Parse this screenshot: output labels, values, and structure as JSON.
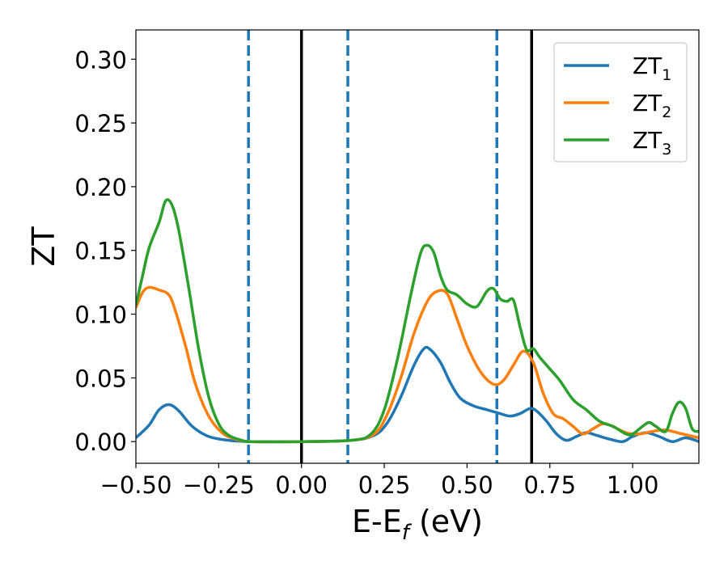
{
  "chart_data": {
    "type": "line",
    "xlabel": "E-E",
    "xlabel_sub": "f",
    "xlabel_unit": "(eV)",
    "ylabel": "ZT",
    "xlim": [
      -0.5,
      1.2
    ],
    "ylim": [
      -0.017,
      0.323
    ],
    "grid": false,
    "legend_position": "top-right",
    "x_ticks": [
      -0.5,
      -0.25,
      0.0,
      0.25,
      0.5,
      0.75,
      1.0
    ],
    "x_tick_labels": [
      "−0.50",
      "−0.25",
      "0.00",
      "0.25",
      "0.50",
      "0.75",
      "1.00"
    ],
    "y_ticks": [
      0.0,
      0.05,
      0.1,
      0.15,
      0.2,
      0.25,
      0.3
    ],
    "y_tick_labels": [
      "0.00",
      "0.05",
      "0.10",
      "0.15",
      "0.20",
      "0.25",
      "0.30"
    ],
    "vertical_lines": [
      {
        "x": -0.16,
        "style": "dashed",
        "color": "#1f77b4"
      },
      {
        "x": 0.0,
        "style": "solid",
        "color": "#000000"
      },
      {
        "x": 0.14,
        "style": "dashed",
        "color": "#1f77b4"
      },
      {
        "x": 0.59,
        "style": "dashed",
        "color": "#1f77b4"
      },
      {
        "x": 0.695,
        "style": "solid",
        "color": "#000000"
      }
    ],
    "series": [
      {
        "name": "ZT",
        "name_sub": "1",
        "color": "#1f77b4",
        "points": [
          [
            -0.5,
            0.003
          ],
          [
            -0.46,
            0.013
          ],
          [
            -0.43,
            0.025
          ],
          [
            -0.4,
            0.029
          ],
          [
            -0.37,
            0.024
          ],
          [
            -0.33,
            0.012
          ],
          [
            -0.28,
            0.004
          ],
          [
            -0.22,
            0.001
          ],
          [
            -0.15,
            0.0
          ],
          [
            0.0,
            0.0
          ],
          [
            0.15,
            0.001
          ],
          [
            0.22,
            0.005
          ],
          [
            0.26,
            0.015
          ],
          [
            0.3,
            0.035
          ],
          [
            0.34,
            0.06
          ],
          [
            0.37,
            0.073
          ],
          [
            0.39,
            0.072
          ],
          [
            0.42,
            0.062
          ],
          [
            0.45,
            0.046
          ],
          [
            0.48,
            0.034
          ],
          [
            0.52,
            0.028
          ],
          [
            0.56,
            0.025
          ],
          [
            0.6,
            0.022
          ],
          [
            0.63,
            0.02
          ],
          [
            0.66,
            0.022
          ],
          [
            0.69,
            0.026
          ],
          [
            0.71,
            0.024
          ],
          [
            0.74,
            0.016
          ],
          [
            0.77,
            0.006
          ],
          [
            0.8,
            0.001
          ],
          [
            0.83,
            0.004
          ],
          [
            0.86,
            0.007
          ],
          [
            0.89,
            0.005
          ],
          [
            0.93,
            0.002
          ],
          [
            0.97,
            0.0
          ],
          [
            1.0,
            0.004
          ],
          [
            1.04,
            0.007
          ],
          [
            1.08,
            0.004
          ],
          [
            1.12,
            0.0
          ],
          [
            1.16,
            0.003
          ],
          [
            1.2,
            0.0
          ]
        ]
      },
      {
        "name": "ZT",
        "name_sub": "2",
        "color": "#ff7f0e",
        "points": [
          [
            -0.5,
            0.105
          ],
          [
            -0.48,
            0.117
          ],
          [
            -0.46,
            0.121
          ],
          [
            -0.43,
            0.119
          ],
          [
            -0.4,
            0.115
          ],
          [
            -0.38,
            0.102
          ],
          [
            -0.35,
            0.075
          ],
          [
            -0.32,
            0.045
          ],
          [
            -0.28,
            0.02
          ],
          [
            -0.24,
            0.007
          ],
          [
            -0.2,
            0.002
          ],
          [
            -0.15,
            0.0
          ],
          [
            0.0,
            0.0
          ],
          [
            0.15,
            0.001
          ],
          [
            0.22,
            0.006
          ],
          [
            0.26,
            0.022
          ],
          [
            0.3,
            0.05
          ],
          [
            0.34,
            0.085
          ],
          [
            0.38,
            0.11
          ],
          [
            0.41,
            0.118
          ],
          [
            0.44,
            0.116
          ],
          [
            0.47,
            0.096
          ],
          [
            0.5,
            0.075
          ],
          [
            0.54,
            0.055
          ],
          [
            0.58,
            0.045
          ],
          [
            0.61,
            0.048
          ],
          [
            0.64,
            0.06
          ],
          [
            0.67,
            0.071
          ],
          [
            0.7,
            0.062
          ],
          [
            0.73,
            0.038
          ],
          [
            0.76,
            0.022
          ],
          [
            0.79,
            0.018
          ],
          [
            0.82,
            0.012
          ],
          [
            0.85,
            0.006
          ],
          [
            0.88,
            0.01
          ],
          [
            0.91,
            0.014
          ],
          [
            0.94,
            0.012
          ],
          [
            0.98,
            0.007
          ],
          [
            1.02,
            0.006
          ],
          [
            1.06,
            0.008
          ],
          [
            1.1,
            0.009
          ],
          [
            1.15,
            0.006
          ],
          [
            1.2,
            0.003
          ]
        ]
      },
      {
        "name": "ZT",
        "name_sub": "3",
        "color": "#2ca02c",
        "points": [
          [
            -0.5,
            0.107
          ],
          [
            -0.48,
            0.13
          ],
          [
            -0.46,
            0.152
          ],
          [
            -0.43,
            0.172
          ],
          [
            -0.41,
            0.189
          ],
          [
            -0.39,
            0.185
          ],
          [
            -0.37,
            0.165
          ],
          [
            -0.34,
            0.12
          ],
          [
            -0.31,
            0.072
          ],
          [
            -0.28,
            0.035
          ],
          [
            -0.25,
            0.014
          ],
          [
            -0.22,
            0.005
          ],
          [
            -0.18,
            0.001
          ],
          [
            -0.15,
            0.0
          ],
          [
            0.0,
            0.0
          ],
          [
            0.15,
            0.001
          ],
          [
            0.21,
            0.006
          ],
          [
            0.25,
            0.025
          ],
          [
            0.29,
            0.065
          ],
          [
            0.33,
            0.115
          ],
          [
            0.36,
            0.148
          ],
          [
            0.38,
            0.154
          ],
          [
            0.4,
            0.148
          ],
          [
            0.42,
            0.13
          ],
          [
            0.44,
            0.119
          ],
          [
            0.47,
            0.115
          ],
          [
            0.5,
            0.108
          ],
          [
            0.53,
            0.106
          ],
          [
            0.56,
            0.118
          ],
          [
            0.58,
            0.12
          ],
          [
            0.6,
            0.112
          ],
          [
            0.62,
            0.11
          ],
          [
            0.64,
            0.111
          ],
          [
            0.66,
            0.09
          ],
          [
            0.68,
            0.072
          ],
          [
            0.7,
            0.073
          ],
          [
            0.72,
            0.066
          ],
          [
            0.75,
            0.057
          ],
          [
            0.78,
            0.048
          ],
          [
            0.82,
            0.033
          ],
          [
            0.86,
            0.025
          ],
          [
            0.9,
            0.016
          ],
          [
            0.94,
            0.012
          ],
          [
            0.98,
            0.006
          ],
          [
            1.0,
            0.006
          ],
          [
            1.03,
            0.012
          ],
          [
            1.05,
            0.015
          ],
          [
            1.07,
            0.012
          ],
          [
            1.1,
            0.008
          ],
          [
            1.12,
            0.022
          ],
          [
            1.14,
            0.031
          ],
          [
            1.16,
            0.026
          ],
          [
            1.18,
            0.01
          ],
          [
            1.2,
            0.008
          ]
        ]
      }
    ]
  }
}
